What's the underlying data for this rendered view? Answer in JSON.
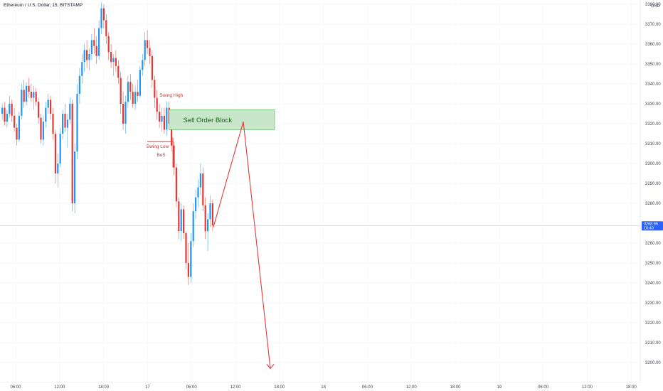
{
  "chart_data": {
    "type": "candlestick",
    "title": "Ethereum / U.S. Dollar, 15, BITSTAMP",
    "currency": "USD",
    "ylim": [
      3195,
      3380
    ],
    "y_ticks": [
      3200,
      3210,
      3220,
      3230,
      3240,
      3250,
      3260,
      3270,
      3280,
      3290,
      3300,
      3310,
      3320,
      3330,
      3340,
      3350,
      3360,
      3370,
      3380
    ],
    "x_ticks": [
      "06:00",
      "12:00",
      "18:00",
      "17",
      "06:00",
      "12:00",
      "18:00",
      "18",
      "06:00",
      "12:00",
      "18:00",
      "19",
      "06:00",
      "12:00",
      "18:00"
    ],
    "current_price": {
      "value": 3268.85,
      "label": "3268.85",
      "countdown": "10:40"
    },
    "candles": [
      [
        3325,
        3330,
        3322,
        3328
      ],
      [
        3328,
        3331,
        3319,
        3321
      ],
      [
        3321,
        3327,
        3318,
        3325
      ],
      [
        3325,
        3334,
        3323,
        3330
      ],
      [
        3330,
        3332,
        3321,
        3324
      ],
      [
        3324,
        3328,
        3316,
        3318
      ],
      [
        3318,
        3320,
        3309,
        3312
      ],
      [
        3312,
        3326,
        3311,
        3324
      ],
      [
        3324,
        3340,
        3322,
        3337
      ],
      [
        3337,
        3342,
        3328,
        3331
      ],
      [
        3331,
        3341,
        3329,
        3339
      ],
      [
        3339,
        3343,
        3333,
        3336
      ],
      [
        3336,
        3340,
        3331,
        3333
      ],
      [
        3333,
        3339,
        3327,
        3336
      ],
      [
        3336,
        3338,
        3329,
        3331
      ],
      [
        3331,
        3333,
        3320,
        3323
      ],
      [
        3323,
        3325,
        3310,
        3312
      ],
      [
        3312,
        3324,
        3309,
        3321
      ],
      [
        3321,
        3331,
        3318,
        3328
      ],
      [
        3328,
        3335,
        3325,
        3332
      ],
      [
        3332,
        3334,
        3322,
        3325
      ],
      [
        3325,
        3328,
        3312,
        3315
      ],
      [
        3315,
        3317,
        3290,
        3295
      ],
      [
        3295,
        3305,
        3288,
        3300
      ],
      [
        3300,
        3318,
        3298,
        3315
      ],
      [
        3315,
        3327,
        3312,
        3325
      ],
      [
        3325,
        3330,
        3316,
        3318
      ],
      [
        3318,
        3325,
        3308,
        3322
      ],
      [
        3322,
        3333,
        3320,
        3330
      ],
      [
        3330,
        3332,
        3276,
        3280
      ],
      [
        3280,
        3310,
        3275,
        3306
      ],
      [
        3306,
        3340,
        3302,
        3335
      ],
      [
        3335,
        3348,
        3330,
        3344
      ],
      [
        3344,
        3355,
        3340,
        3351
      ],
      [
        3351,
        3360,
        3346,
        3357
      ],
      [
        3357,
        3362,
        3348,
        3352
      ],
      [
        3352,
        3358,
        3347,
        3355
      ],
      [
        3355,
        3365,
        3352,
        3362
      ],
      [
        3362,
        3368,
        3355,
        3359
      ],
      [
        3359,
        3364,
        3350,
        3354
      ],
      [
        3354,
        3372,
        3352,
        3368
      ],
      [
        3368,
        3381,
        3365,
        3378
      ],
      [
        3378,
        3380,
        3368,
        3372
      ],
      [
        3372,
        3375,
        3360,
        3364
      ],
      [
        3364,
        3366,
        3352,
        3356
      ],
      [
        3356,
        3360,
        3348,
        3351
      ],
      [
        3351,
        3355,
        3344,
        3353
      ],
      [
        3353,
        3357,
        3346,
        3349
      ],
      [
        3349,
        3352,
        3340,
        3343
      ],
      [
        3343,
        3346,
        3325,
        3330
      ],
      [
        3330,
        3336,
        3317,
        3320
      ],
      [
        3320,
        3334,
        3315,
        3331
      ],
      [
        3331,
        3344,
        3328,
        3341
      ],
      [
        3341,
        3345,
        3332,
        3336
      ],
      [
        3336,
        3340,
        3328,
        3330
      ],
      [
        3330,
        3339,
        3327,
        3336
      ],
      [
        3336,
        3342,
        3331,
        3334
      ],
      [
        3334,
        3349,
        3333,
        3347
      ],
      [
        3347,
        3355,
        3344,
        3352
      ],
      [
        3352,
        3366,
        3349,
        3362
      ],
      [
        3362,
        3367,
        3355,
        3358
      ],
      [
        3358,
        3362,
        3350,
        3354
      ],
      [
        3354,
        3357,
        3338,
        3342
      ],
      [
        3342,
        3344,
        3328,
        3333
      ],
      [
        3333,
        3337,
        3322,
        3326
      ],
      [
        3326,
        3330,
        3318,
        3321
      ],
      [
        3321,
        3328,
        3316,
        3324
      ],
      [
        3324,
        3328,
        3315,
        3317
      ],
      [
        3317,
        3331,
        3314,
        3328
      ],
      [
        3328,
        3331,
        3318,
        3320
      ],
      [
        3320,
        3322,
        3306,
        3309
      ],
      [
        3309,
        3311,
        3294,
        3298
      ],
      [
        3298,
        3300,
        3278,
        3281
      ],
      [
        3281,
        3283,
        3262,
        3266
      ],
      [
        3266,
        3280,
        3261,
        3277
      ],
      [
        3277,
        3279,
        3262,
        3265
      ],
      [
        3265,
        3266,
        3247,
        3250
      ],
      [
        3250,
        3260,
        3239,
        3243
      ],
      [
        3243,
        3265,
        3240,
        3261
      ],
      [
        3261,
        3280,
        3258,
        3276
      ],
      [
        3276,
        3287,
        3272,
        3283
      ],
      [
        3283,
        3292,
        3278,
        3288
      ],
      [
        3288,
        3300,
        3284,
        3295
      ],
      [
        3295,
        3298,
        3276,
        3279
      ],
      [
        3279,
        3283,
        3262,
        3266
      ],
      [
        3266,
        3275,
        3256,
        3272
      ],
      [
        3272,
        3284,
        3268,
        3280
      ],
      [
        3280,
        3282,
        3266,
        3269
      ]
    ]
  },
  "annotations": {
    "swing_high": "Swing High",
    "swing_low": "Swing Low",
    "bos": "BoS",
    "order_block": {
      "label": "Sell Order Block",
      "top": 3327,
      "bottom": 3317,
      "color": "#4caf50"
    },
    "projection": {
      "color": "#e53935"
    }
  }
}
